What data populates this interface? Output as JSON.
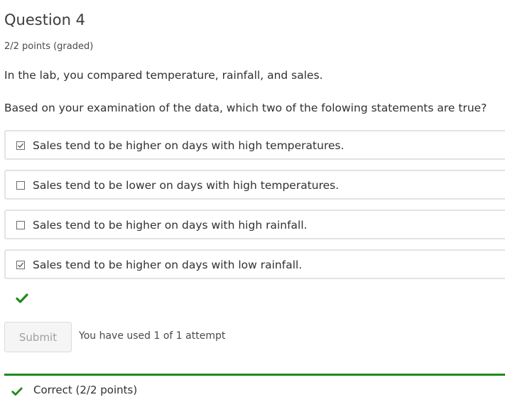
{
  "question": {
    "title": "Question 4",
    "points": "2/2 points (graded)",
    "prompt_1": "In the lab, you compared temperature, rainfall, and sales.",
    "prompt_2": "Based on your examination of the data, which two of the folowing statements are true?"
  },
  "choices": [
    {
      "label": "Sales tend to be higher on days with high temperatures.",
      "checked": true
    },
    {
      "label": "Sales tend to be lower on days with high temperatures.",
      "checked": false
    },
    {
      "label": "Sales tend to be higher on days with high rainfall.",
      "checked": false
    },
    {
      "label": "Sales tend to be higher on days with low rainfall.",
      "checked": true
    }
  ],
  "actions": {
    "submit_label": "Submit",
    "attempts_text": "You have used 1 of 1 attempt"
  },
  "result": {
    "text": "Correct (2/2 points)",
    "status": "correct",
    "color": "#1f8a1f"
  },
  "icons": {
    "checkmark": "checkmark-icon",
    "checkbox_checked": "checkbox-checked-icon",
    "checkbox_empty": "checkbox-empty-icon"
  }
}
